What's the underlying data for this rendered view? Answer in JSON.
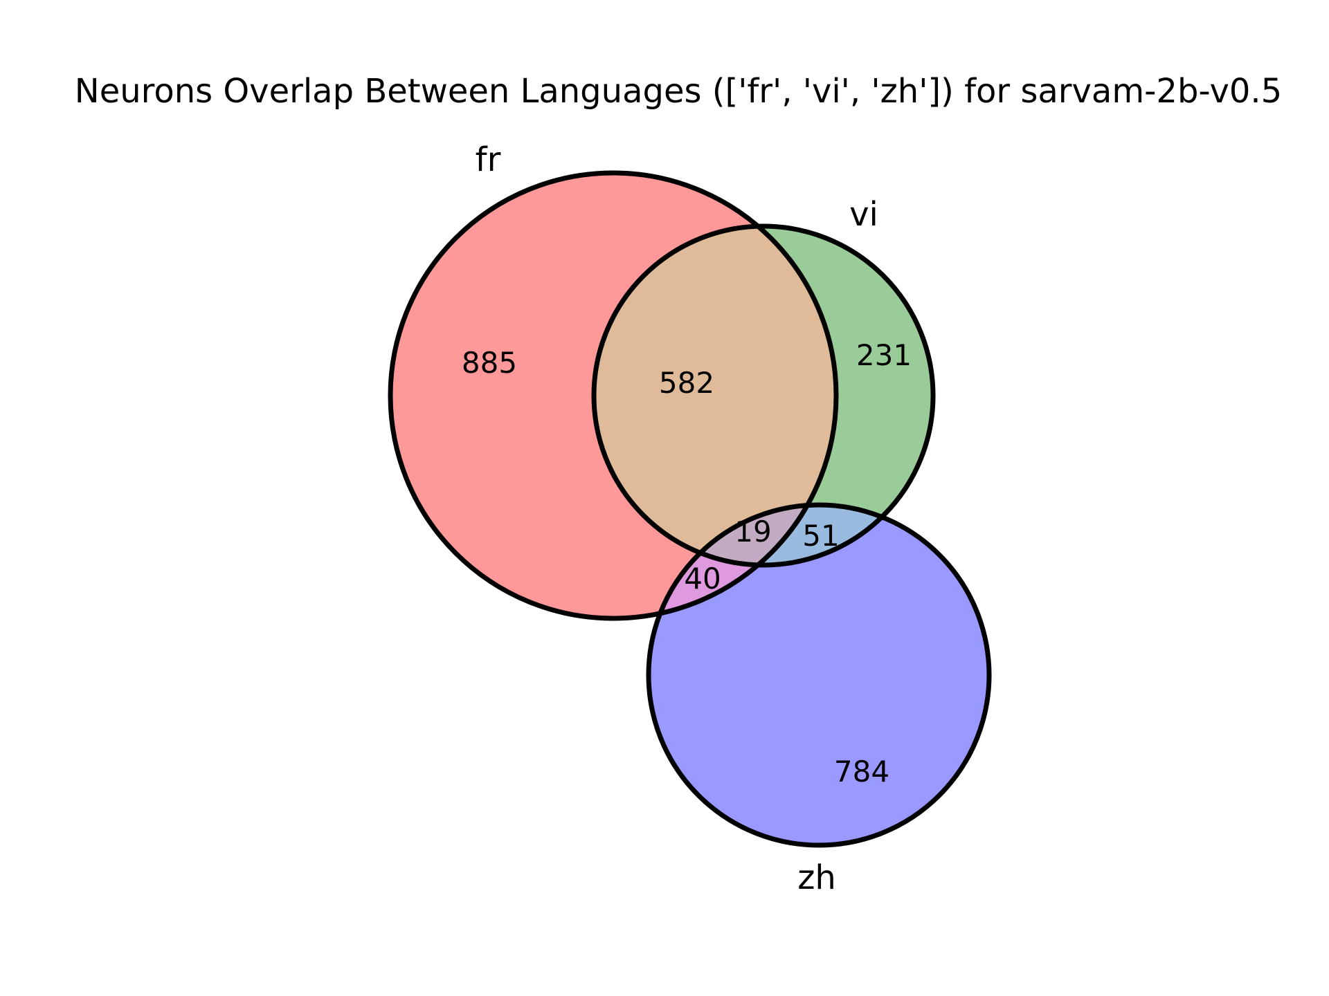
{
  "title": "Neurons Overlap Between Languages (['fr', 'vi', 'zh']) for sarvam-2b-v0.5",
  "sets": [
    {
      "key": "fr",
      "label": "fr",
      "color": "#ff9999"
    },
    {
      "key": "vi",
      "label": "vi",
      "color": "#99cc99"
    },
    {
      "key": "zh",
      "label": "zh",
      "color": "#9999ff"
    }
  ],
  "regions": {
    "fr_only": "885",
    "vi_only": "231",
    "zh_only": "784",
    "fr_vi": "582",
    "fr_zh": "40",
    "vi_zh": "51",
    "fr_vi_zh": "19"
  },
  "region_colors": {
    "fr_vi": "#dfbb99",
    "fr_zh": "#df99df",
    "vi_zh": "#99bbdf",
    "fr_vi_zh": "#c3abc3"
  }
}
